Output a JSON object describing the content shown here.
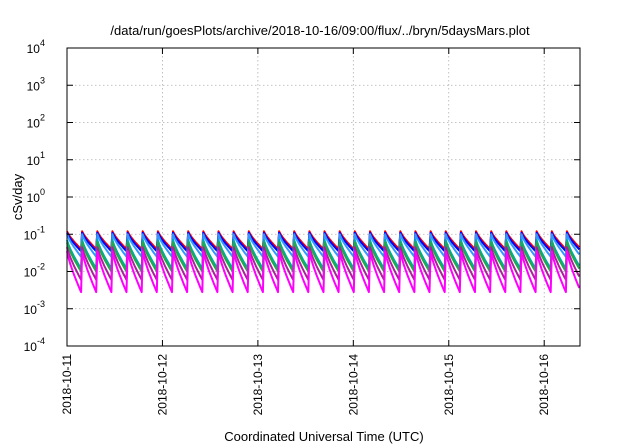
{
  "chart_data": {
    "type": "line",
    "title": "/data/run/goesPlots/archive/2018-10-16/09:00/flux/../bryn/5daysMars.plot",
    "xlabel": "Coordinated Universal Time (UTC)",
    "ylabel": "cSv/day",
    "y_scale": "log",
    "ylim": [
      0.0001,
      10000
    ],
    "xlim": [
      "2018-10-11",
      "2018-10-16 09:00"
    ],
    "y_ticks": [
      {
        "value": 0.0001,
        "base": "10",
        "exp": "-4"
      },
      {
        "value": 0.001,
        "base": "10",
        "exp": "-3"
      },
      {
        "value": 0.01,
        "base": "10",
        "exp": "-2"
      },
      {
        "value": 0.1,
        "base": "10",
        "exp": "-1"
      },
      {
        "value": 1,
        "base": "10",
        "exp": "0"
      },
      {
        "value": 10,
        "base": "10",
        "exp": "1"
      },
      {
        "value": 100,
        "base": "10",
        "exp": "2"
      },
      {
        "value": 1000,
        "base": "10",
        "exp": "3"
      },
      {
        "value": 10000,
        "base": "10",
        "exp": "4"
      }
    ],
    "x_ticks": [
      "2018-10-11",
      "2018-10-12",
      "2018-10-13",
      "2018-10-14",
      "2018-10-15",
      "2018-10-16"
    ],
    "grid": true,
    "cycles_per_day": 6.3,
    "series": [
      {
        "color": "#ff0000",
        "peak": 0.12,
        "trough": 0.04
      },
      {
        "color": "#0000ff",
        "peak": 0.11,
        "trough": 0.035
      },
      {
        "color": "#3399ff",
        "peak": 0.1,
        "trough": 0.025
      },
      {
        "color": "#00aaaa",
        "peak": 0.07,
        "trough": 0.012
      },
      {
        "color": "#22aa44",
        "peak": 0.06,
        "trough": 0.01
      },
      {
        "color": "#aa2299",
        "peak": 0.045,
        "trough": 0.006
      },
      {
        "color": "#ff00ff",
        "peak": 0.035,
        "trough": 0.0028
      }
    ]
  }
}
